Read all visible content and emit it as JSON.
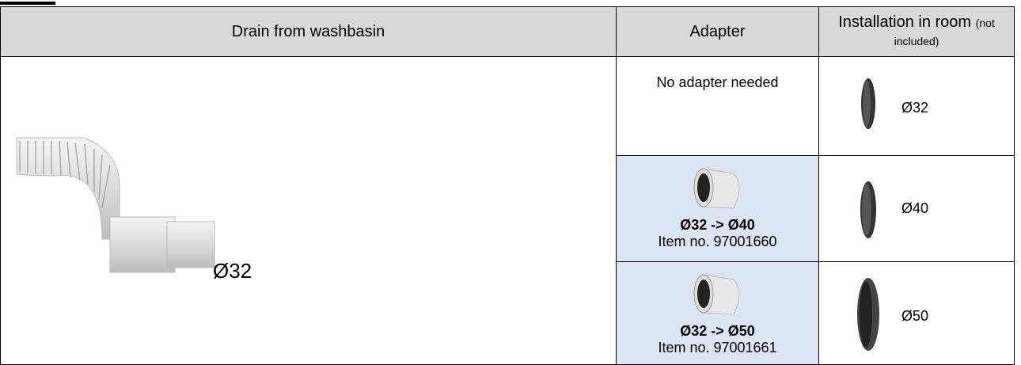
{
  "table": {
    "header": [
      "Drain from washbasin",
      "Adapter",
      {
        "main": "Installation in room",
        "note": "(not included)"
      }
    ],
    "drain": "Ø32",
    "rows": [
      {
        "adapter": "No adapter needed",
        "install": "Ø32"
      },
      {
        "adapter": "Ø32 -> Ø40",
        "item": "Item no. 97001660",
        "install": "Ø40"
      },
      {
        "adapter": "Ø32 -> Ø50",
        "item": "Item no. 97001661",
        "install": "Ø50"
      }
    ]
  }
}
